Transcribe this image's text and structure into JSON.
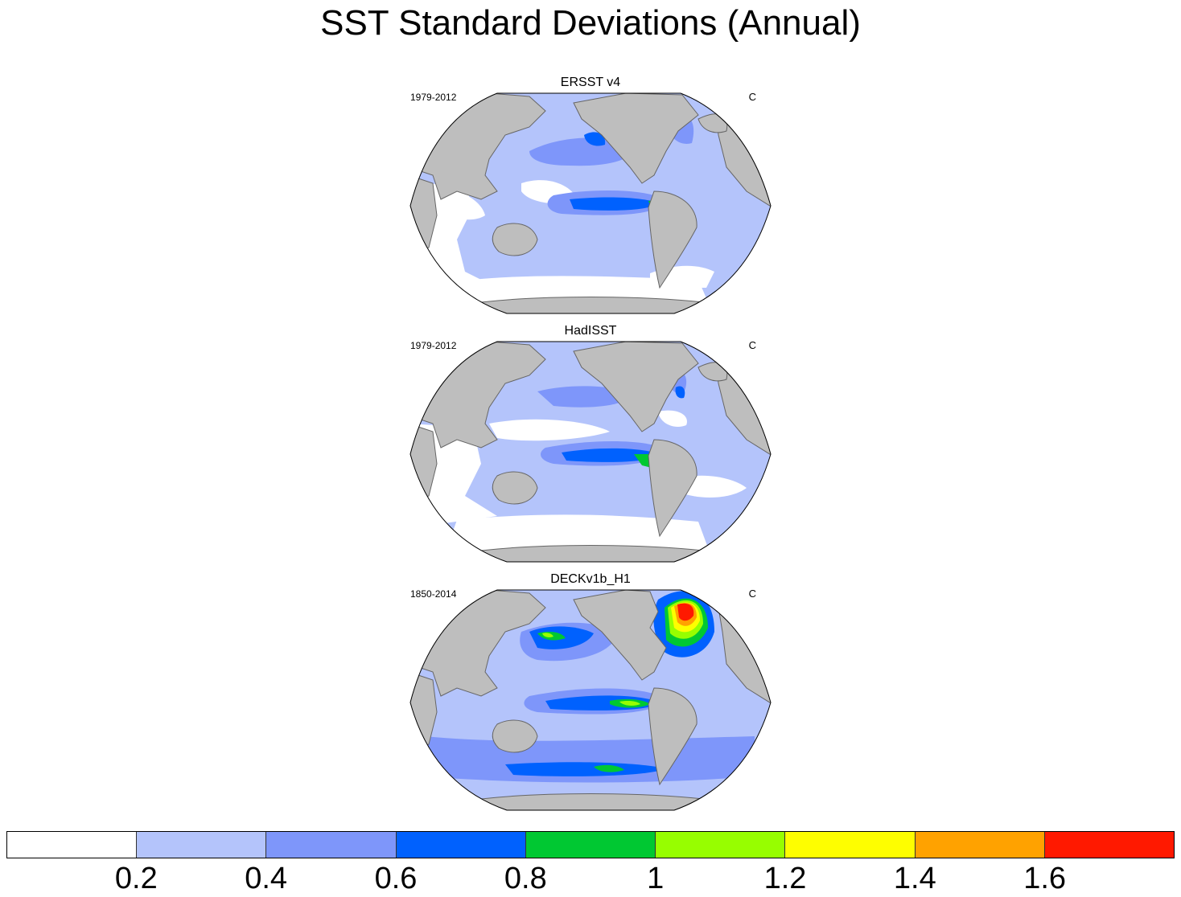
{
  "title": "SST Standard Deviations (Annual)",
  "panels": [
    {
      "title": "ERSST v4",
      "period": "1979-2012",
      "units": "C"
    },
    {
      "title": "HadISST",
      "period": "1979-2012",
      "units": "C"
    },
    {
      "title": "DECKv1b_H1",
      "period": "1850-2014",
      "units": "C"
    }
  ],
  "colorbar": {
    "colors": [
      "#ffffff",
      "#b4c4fb",
      "#7e96fa",
      "#0061fe",
      "#00c832",
      "#97fe00",
      "#fefe00",
      "#ffa200",
      "#ff1900"
    ],
    "labels": [
      "0.2",
      "0.4",
      "0.6",
      "0.8",
      "1",
      "1.2",
      "1.4",
      "1.6"
    ]
  },
  "colors": {
    "land": "#bebebe",
    "land_outline": "#666666"
  }
}
